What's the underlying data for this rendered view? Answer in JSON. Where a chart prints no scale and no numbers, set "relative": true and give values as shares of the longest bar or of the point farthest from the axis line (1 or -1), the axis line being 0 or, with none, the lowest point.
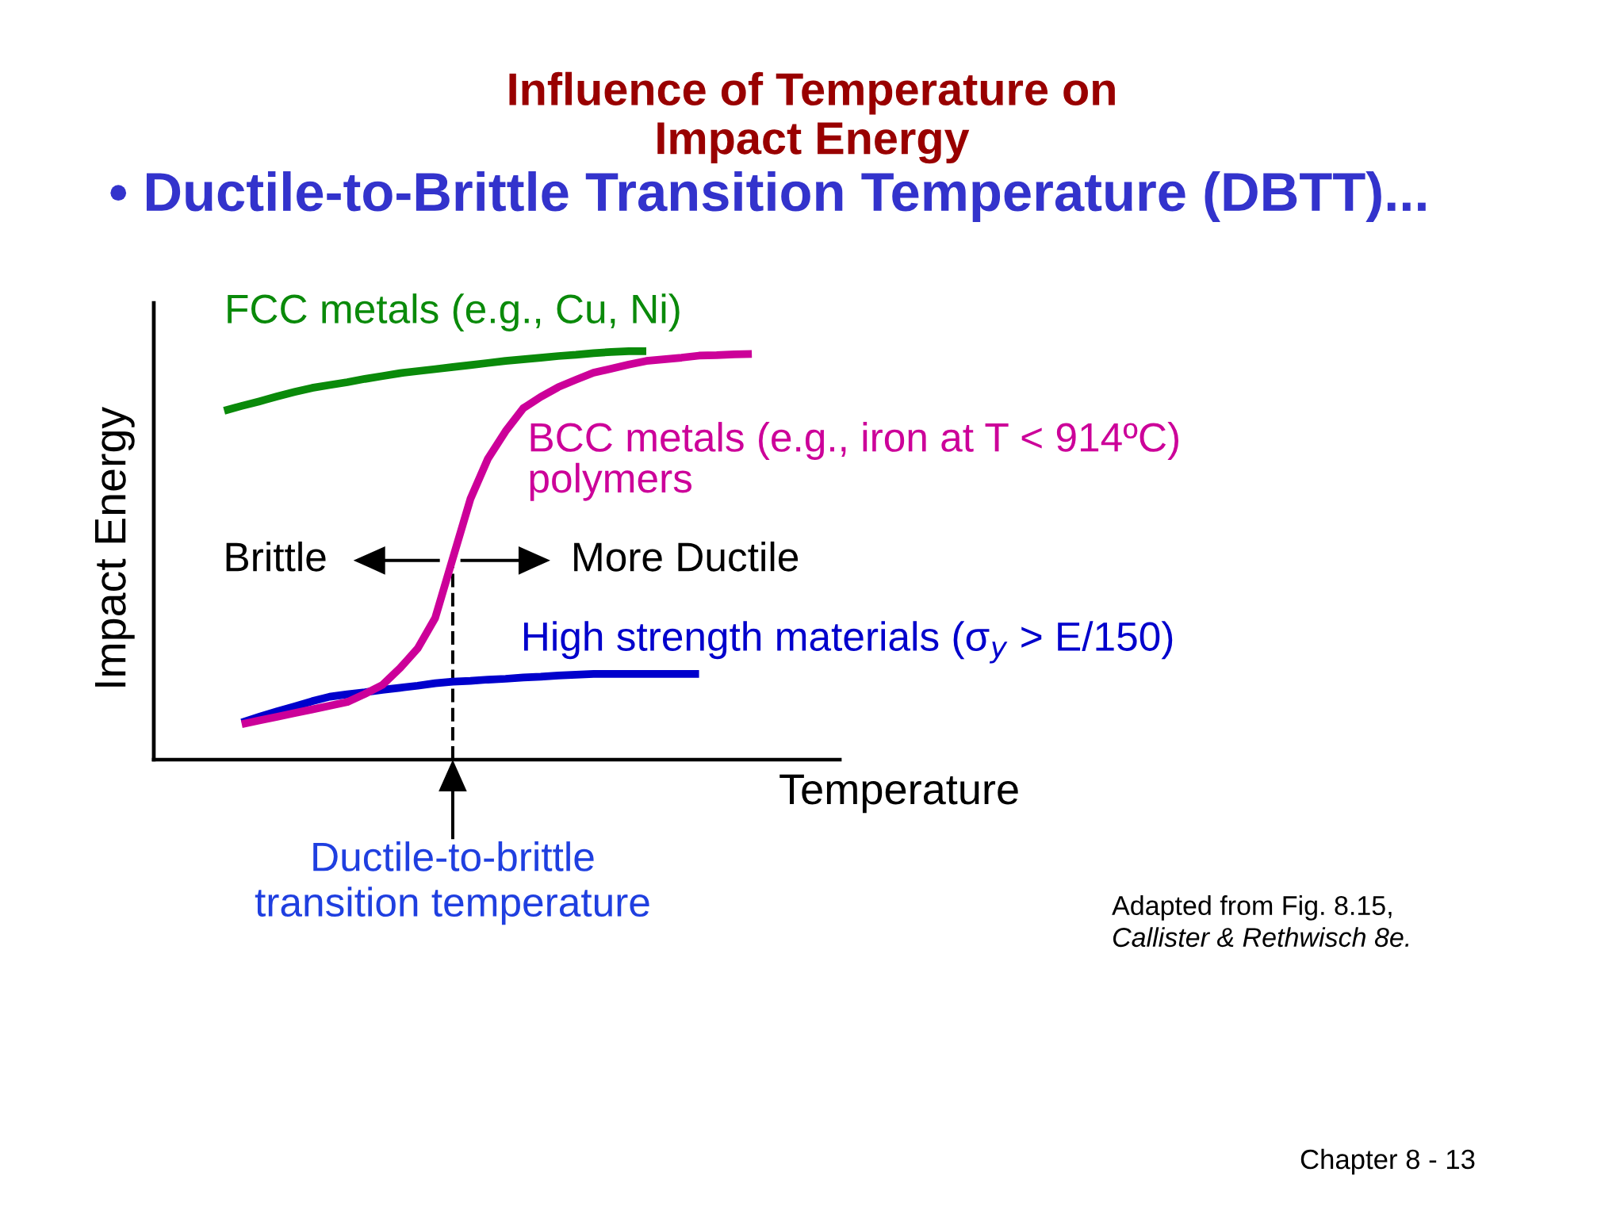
{
  "chart_data": {
    "type": "line",
    "title": "Influence of Temperature on\nImpact Energy",
    "subtitle": "• Ductile-to-Brittle Transition Temperature (DBTT)...",
    "xlabel": "Temperature",
    "ylabel": "Impact Energy",
    "relative": true,
    "categories": [
      null,
      null,
      null,
      null,
      null,
      null,
      null,
      null,
      null,
      null,
      null,
      null,
      null,
      null,
      null,
      null,
      null,
      null,
      null,
      null,
      null,
      null,
      null,
      null,
      null,
      null,
      null,
      null,
      null,
      null,
      null,
      null,
      null,
      null,
      null,
      null,
      null,
      null,
      null,
      null
    ],
    "series": [
      {
        "name": "FCC metals (e.g., Cu, Ni)",
        "color": "#0a8a0a",
        "values": [
          null,
          null,
          null,
          null,
          0.854,
          0.866,
          0.877,
          0.889,
          0.9,
          0.91,
          0.917,
          0.924,
          0.932,
          0.939,
          0.946,
          0.951,
          0.956,
          0.961,
          0.966,
          0.971,
          0.976,
          0.98,
          0.984,
          0.988,
          0.991,
          0.995,
          0.998,
          1.0,
          1.0,
          null,
          null,
          null,
          null,
          null,
          null,
          null,
          null,
          null,
          null,
          null
        ]
      },
      {
        "name": "BCC metals (e.g., iron at T < 914ºC)\npolymers",
        "color": "#cc0099",
        "values": [
          null,
          null,
          null,
          null,
          null,
          0.087,
          0.096,
          0.105,
          0.114,
          0.123,
          0.132,
          0.141,
          0.161,
          0.183,
          0.224,
          0.272,
          0.347,
          0.493,
          0.638,
          0.737,
          0.804,
          0.86,
          0.888,
          0.912,
          0.93,
          0.947,
          0.957,
          0.967,
          0.976,
          0.98,
          0.984,
          0.989,
          0.99,
          0.992,
          0.993,
          null,
          null,
          null,
          null,
          null
        ]
      },
      {
        "name": "High strength materials (σ$_{y}$ > E/150)",
        "color": "#0000cc",
        "values": [
          null,
          null,
          null,
          null,
          null,
          0.091,
          0.105,
          0.118,
          0.13,
          0.143,
          0.154,
          0.16,
          0.165,
          0.171,
          0.176,
          0.181,
          0.187,
          0.191,
          0.193,
          0.196,
          0.198,
          0.201,
          0.203,
          0.206,
          0.208,
          0.21,
          0.21,
          0.21,
          0.21,
          0.21,
          0.21,
          0.21,
          null,
          null,
          null,
          null,
          null,
          null,
          null,
          null
        ]
      }
    ],
    "annotations": [
      "Brittle",
      "More Ductile",
      "Ductile-to-brittle\ntransition temperature",
      "Adapted from Fig. 8.15,",
      "Callister & Rethwisch 8e.",
      "Chapter 8 - 13"
    ]
  }
}
